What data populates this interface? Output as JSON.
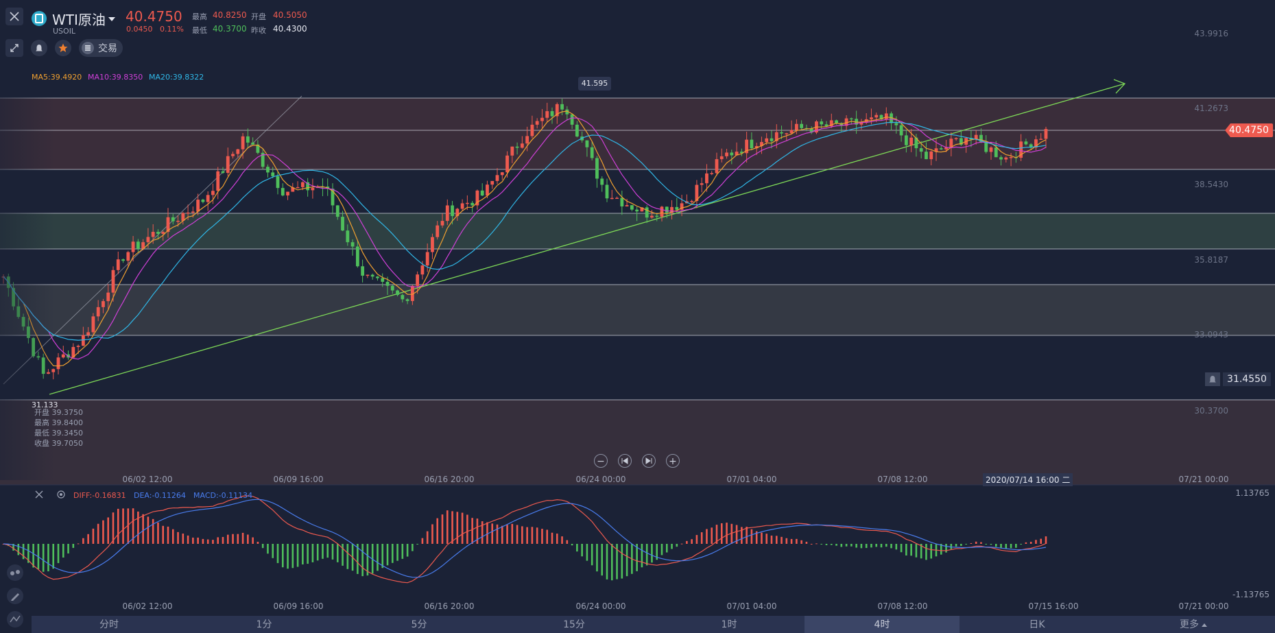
{
  "symbol": {
    "name": "WTI原油",
    "code": "USOIL",
    "price": "40.4750",
    "change": "0.0450",
    "change_pct": "0.11%"
  },
  "stats": {
    "high_label": "最高",
    "high": "40.8250",
    "open_label": "开盘",
    "open": "40.5050",
    "low_label": "最低",
    "low": "40.3700",
    "prev_close_label": "昨收",
    "prev_close": "40.4300"
  },
  "toolbar": {
    "trade_label": "交易"
  },
  "ma": {
    "ma5": "MA5:39.4920",
    "ma10": "MA10:39.8350",
    "ma20": "MA20:39.8322"
  },
  "price_axis": [
    "43.9916",
    "41.2673",
    "38.5430",
    "35.8187",
    "33.0943",
    "30.3700"
  ],
  "current_price_tag": "40.4750",
  "alert_price": "31.4550",
  "marks": {
    "high": "41.595",
    "low": "31.133"
  },
  "ohlc_info": {
    "open": "开盘 39.3750",
    "high": "最高 39.8400",
    "low": "最低 39.3450",
    "close": "收盘 39.7050"
  },
  "time_axis": [
    "06/02 12:00",
    "06/09 16:00",
    "06/16 20:00",
    "06/24 00:00",
    "07/01 04:00",
    "07/08 12:00",
    "07/21 00:00"
  ],
  "crosshair_time": "2020/07/14 16:00 二",
  "macd": {
    "diff": "DIFF:-0.16831",
    "dea": "DEA:-0.11264",
    "macd": "MACD:-0.11134",
    "axis_top": "1.13765",
    "axis_bottom": "-1.13765"
  },
  "macd_time_axis": [
    "06/02 12:00",
    "06/09 16:00",
    "06/16 20:00",
    "06/24 00:00",
    "07/01 04:00",
    "07/08 12:00",
    "07/15 16:00",
    "07/21 00:00"
  ],
  "periods": [
    "分时",
    "1分",
    "5分",
    "15分",
    "1时",
    "4时",
    "日K"
  ],
  "active_period": "4时",
  "more_label": "更多",
  "colors": {
    "bg": "#1b2236",
    "up": "#ee5a4f",
    "down": "#4fbf5b",
    "ma5": "#f0a030",
    "ma10": "#d040d8",
    "ma20": "#30b8e8",
    "trend": "#7ed957",
    "diff": "#ee5a4f",
    "dea": "#4a7ef0"
  },
  "chart_data": {
    "type": "candlestick",
    "ylim": [
      30.37,
      43.9916
    ],
    "close_path": [
      {
        "t": "05/27",
        "y": 35.2
      },
      {
        "t": "05/29",
        "y": 31.6
      },
      {
        "t": "06/01",
        "y": 33.0
      },
      {
        "t": "06/03",
        "y": 36.0
      },
      {
        "t": "06/05",
        "y": 37.0
      },
      {
        "t": "06/07",
        "y": 38.0
      },
      {
        "t": "06/09",
        "y": 40.3
      },
      {
        "t": "06/11",
        "y": 38.3
      },
      {
        "t": "06/13",
        "y": 38.5
      },
      {
        "t": "06/15",
        "y": 35.2
      },
      {
        "t": "06/17",
        "y": 34.3
      },
      {
        "t": "06/19",
        "y": 37.5
      },
      {
        "t": "06/21",
        "y": 38.2
      },
      {
        "t": "06/23",
        "y": 40.4
      },
      {
        "t": "06/24",
        "y": 41.5
      },
      {
        "t": "06/26",
        "y": 38.3
      },
      {
        "t": "06/28",
        "y": 37.5
      },
      {
        "t": "06/30",
        "y": 37.9
      },
      {
        "t": "07/02",
        "y": 39.6
      },
      {
        "t": "07/04",
        "y": 40.3
      },
      {
        "t": "07/06",
        "y": 40.6
      },
      {
        "t": "07/08",
        "y": 40.7
      },
      {
        "t": "07/10",
        "y": 40.9
      },
      {
        "t": "07/11",
        "y": 39.5
      },
      {
        "t": "07/12",
        "y": 40.3
      },
      {
        "t": "07/13",
        "y": 39.5
      },
      {
        "t": "07/14",
        "y": 40.475
      }
    ]
  }
}
